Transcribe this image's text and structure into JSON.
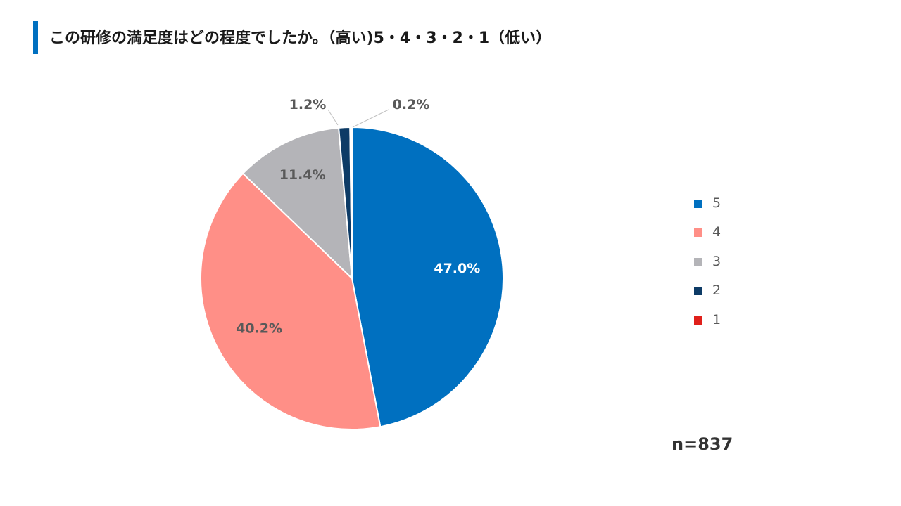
{
  "header": {
    "title": "この研修の満足度はどの程度でしたか。（高い)5・4・3・2・1（低い）",
    "accent_color": "#0070c0"
  },
  "chart_data": {
    "type": "pie",
    "title": "この研修の満足度はどの程度でしたか。（高い)5・4・3・2・1（低い）",
    "start_angle_deg": 0,
    "direction": "clockwise",
    "slices": [
      {
        "name": "5",
        "value": 47.0,
        "label": "47.0%",
        "color": "#0070c0",
        "label_color": "#ffffff"
      },
      {
        "name": "4",
        "value": 40.2,
        "label": "40.2%",
        "color": "#ff8f87",
        "label_color": "#595959"
      },
      {
        "name": "3",
        "value": 11.4,
        "label": "11.4%",
        "color": "#b4b4b8",
        "label_color": "#595959"
      },
      {
        "name": "2",
        "value": 1.2,
        "label": "1.2%",
        "color": "#0d3b66",
        "label_color": "#595959"
      },
      {
        "name": "1",
        "value": 0.2,
        "label": "0.2%",
        "color": "#e0201b",
        "label_color": "#595959"
      }
    ],
    "legend": {
      "position": "right",
      "entries": [
        "5",
        "4",
        "3",
        "2",
        "1"
      ]
    }
  },
  "footnote": {
    "n_text": "n=837"
  }
}
